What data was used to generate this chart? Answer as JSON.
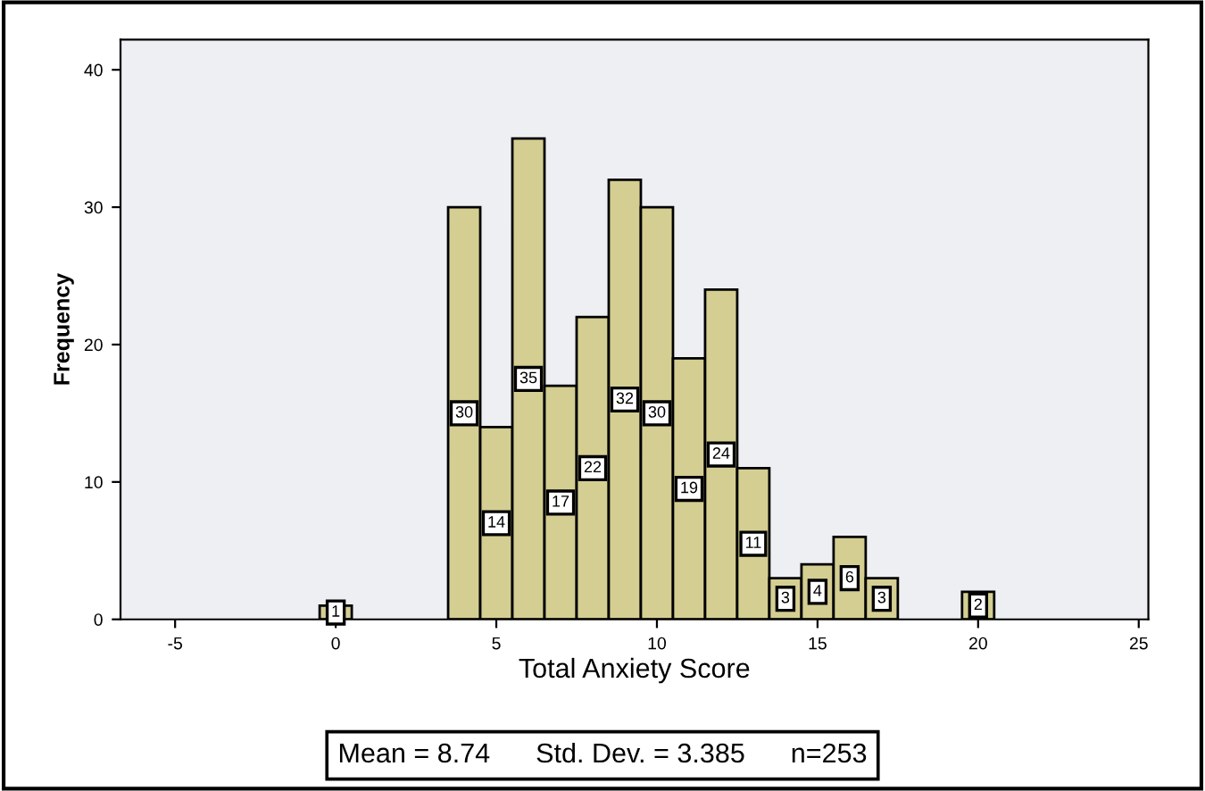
{
  "chart_data": {
    "type": "histogram",
    "xlabel": "Total Anxiety Score",
    "ylabel": "Frequency",
    "bins": [
      -0.5,
      0.5,
      1.5,
      2.5,
      3.5,
      4.5,
      5.5,
      6.5,
      7.5,
      8.5,
      9.5,
      10.5,
      11.5,
      12.5,
      13.5,
      14.5,
      15.5,
      16.5,
      17.5,
      18.5,
      19.5,
      20.5
    ],
    "values": [
      1,
      0,
      0,
      0,
      30,
      14,
      35,
      17,
      22,
      32,
      30,
      19,
      24,
      11,
      3,
      4,
      6,
      3,
      0,
      0,
      2
    ],
    "value_labels": [
      "1",
      null,
      null,
      null,
      "30",
      "14",
      "35",
      "17",
      "22",
      "32",
      "30",
      "19",
      "24",
      "11",
      "3",
      "4",
      "6",
      "3",
      null,
      null,
      "2"
    ],
    "color": "#d4ce92",
    "xlim": [
      -6.7,
      25.3
    ],
    "ylim": [
      0,
      42.2
    ],
    "xticks": [
      -5,
      0,
      5,
      10,
      15,
      20,
      25
    ],
    "yticks": [
      0,
      10,
      20,
      30,
      40
    ],
    "grid": false,
    "annotations": [
      "Mean = 8.74      Std. Dev. = 3.385      n=253"
    ]
  }
}
